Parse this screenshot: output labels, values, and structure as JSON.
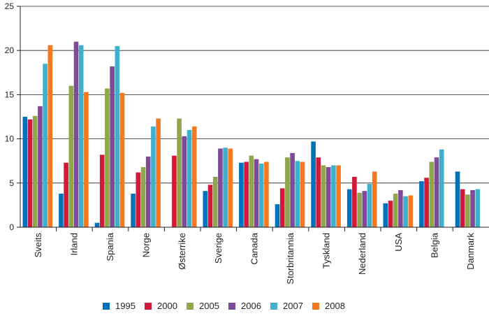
{
  "chart_data": {
    "type": "bar",
    "title": "",
    "xlabel": "",
    "ylabel": "",
    "ylim": [
      0,
      25
    ],
    "yticks": [
      0,
      5,
      10,
      15,
      20,
      25
    ],
    "grid": "horizontal",
    "legend_position": "bottom",
    "categories": [
      "Sveits",
      "Irland",
      "Spania",
      "Norge",
      "Østerrike",
      "Sverige",
      "Canada",
      "Storbritannia",
      "Tyskland",
      "Nederland",
      "USA",
      "Belgia",
      "Danmark"
    ],
    "series": [
      {
        "name": "1995",
        "color": "#0072bc",
        "values": [
          12.5,
          3.8,
          0.5,
          3.8,
          null,
          4.1,
          7.3,
          2.6,
          9.7,
          4.3,
          2.7,
          5.2,
          6.3
        ]
      },
      {
        "name": "2000",
        "color": "#d2193a",
        "values": [
          12.2,
          7.3,
          8.2,
          6.2,
          8.1,
          4.8,
          7.4,
          4.4,
          7.9,
          5.7,
          3.0,
          5.6,
          4.3
        ]
      },
      {
        "name": "2005",
        "color": "#8fa64d",
        "values": [
          12.6,
          16.0,
          15.7,
          6.8,
          12.3,
          5.7,
          8.1,
          7.9,
          7.0,
          3.9,
          3.8,
          7.4,
          3.7
        ]
      },
      {
        "name": "2006",
        "color": "#7f4a97",
        "values": [
          13.7,
          21.0,
          18.2,
          8.0,
          10.3,
          8.9,
          7.7,
          8.4,
          6.8,
          4.1,
          4.2,
          7.9,
          4.2
        ]
      },
      {
        "name": "2007",
        "color": "#3fb0cc",
        "values": [
          18.5,
          20.6,
          20.5,
          11.4,
          11.0,
          9.0,
          7.2,
          7.5,
          7.0,
          4.9,
          3.5,
          8.8,
          4.3
        ]
      },
      {
        "name": "2008",
        "color": "#f47920",
        "values": [
          20.6,
          15.3,
          15.2,
          12.3,
          11.4,
          8.9,
          7.4,
          7.4,
          7.0,
          6.3,
          3.6,
          null,
          null
        ]
      }
    ]
  }
}
